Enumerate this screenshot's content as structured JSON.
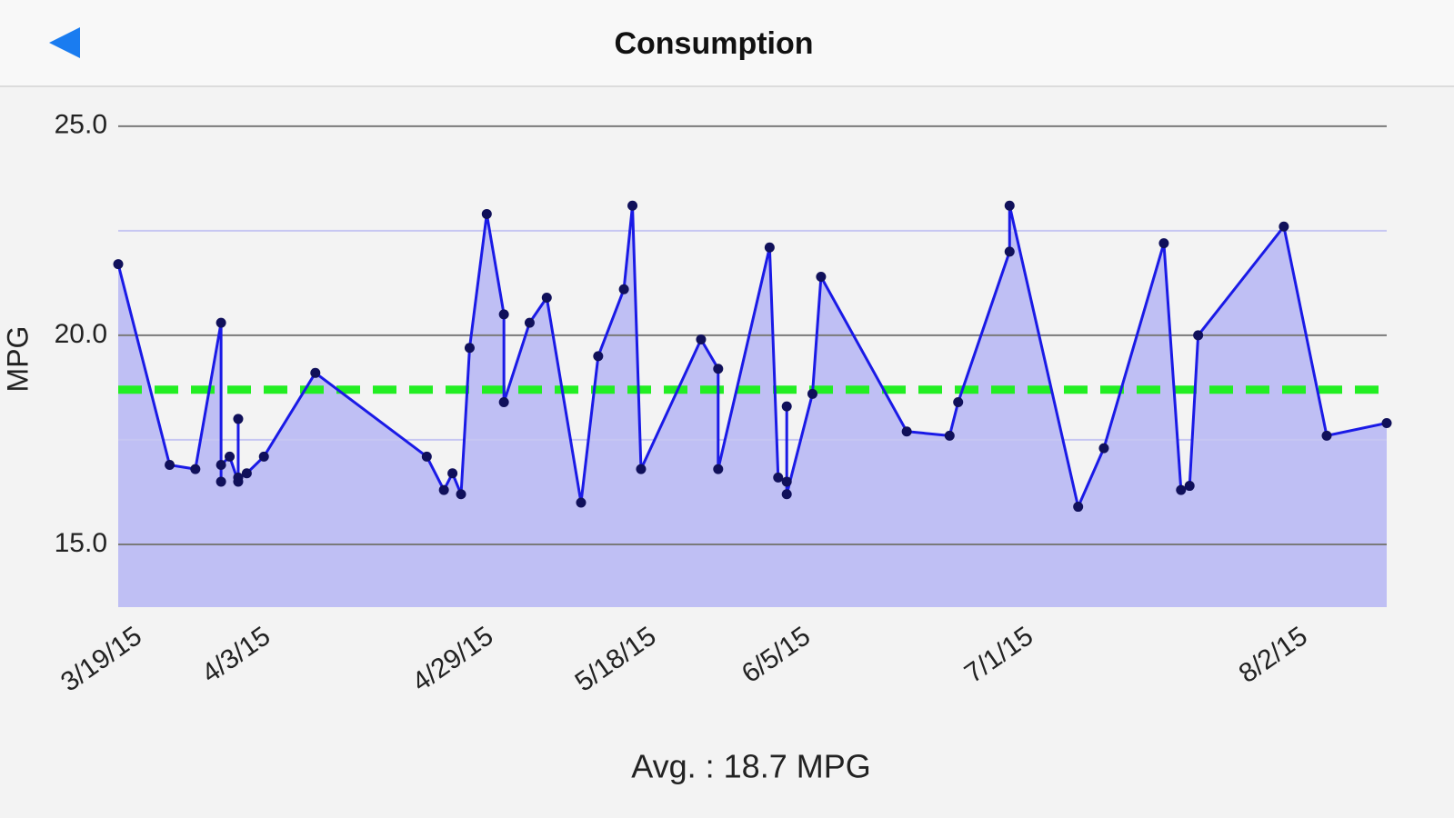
{
  "header": {
    "title": "Consumption"
  },
  "chart_data": {
    "type": "line",
    "y_label": "MPG",
    "x": [
      "3/18/15",
      "3/24/15",
      "3/27/15",
      "3/30/15",
      "3/30/15",
      "3/30/15",
      "3/31/15",
      "4/1/15",
      "4/1/15",
      "4/1/15",
      "4/2/15",
      "4/4/15",
      "4/10/15",
      "4/23/15",
      "4/25/15",
      "4/26/15",
      "4/27/15",
      "4/28/15",
      "4/30/15",
      "5/2/15",
      "5/2/15",
      "5/5/15",
      "5/7/15",
      "5/11/15",
      "5/13/15",
      "5/16/15",
      "5/17/15",
      "5/18/15",
      "5/25/15",
      "5/27/15",
      "5/27/15",
      "6/2/15",
      "6/3/15",
      "6/4/15",
      "6/4/15",
      "6/4/15",
      "6/7/15",
      "6/8/15",
      "6/18/15",
      "6/23/15",
      "6/24/15",
      "6/30/15",
      "6/30/15",
      "7/8/15",
      "7/11/15",
      "7/18/15",
      "7/20/15",
      "7/21/15",
      "7/22/15",
      "8/1/15",
      "8/6/15",
      "8/13/15"
    ],
    "values": [
      21.7,
      16.9,
      16.8,
      20.3,
      16.5,
      16.9,
      17.1,
      16.5,
      18.0,
      16.6,
      16.7,
      17.1,
      19.1,
      17.1,
      16.3,
      16.7,
      16.2,
      19.7,
      22.9,
      20.5,
      18.4,
      20.3,
      20.9,
      16.0,
      19.5,
      21.1,
      23.1,
      16.8,
      19.9,
      19.2,
      16.8,
      22.1,
      16.6,
      16.5,
      18.3,
      16.2,
      18.6,
      21.4,
      17.7,
      17.6,
      18.4,
      22.0,
      23.1,
      15.9,
      17.3,
      22.2,
      16.3,
      16.4,
      20.0,
      22.6,
      17.6,
      17.9
    ],
    "color": "#1a1ae6",
    "fill_color": "#bfbff4",
    "marker_color": "#10105a",
    "xlim": [
      "3/18/15",
      "8/13/15"
    ],
    "xticks": [
      "3/19/15",
      "4/3/15",
      "4/29/15",
      "5/18/15",
      "6/5/15",
      "7/1/15",
      "8/2/15"
    ],
    "ylim": [
      13.5,
      25.8
    ],
    "yticks": [
      {
        "value": 15,
        "label": "15.0"
      },
      {
        "value": 20,
        "label": "20.0"
      },
      {
        "value": 25,
        "label": "25.0"
      }
    ],
    "minor_yticks": [
      17.5,
      22.5
    ],
    "grid": true,
    "average": 18.7,
    "average_label": "Avg. : 18.7 MPG",
    "average_color": "#22ee22"
  }
}
